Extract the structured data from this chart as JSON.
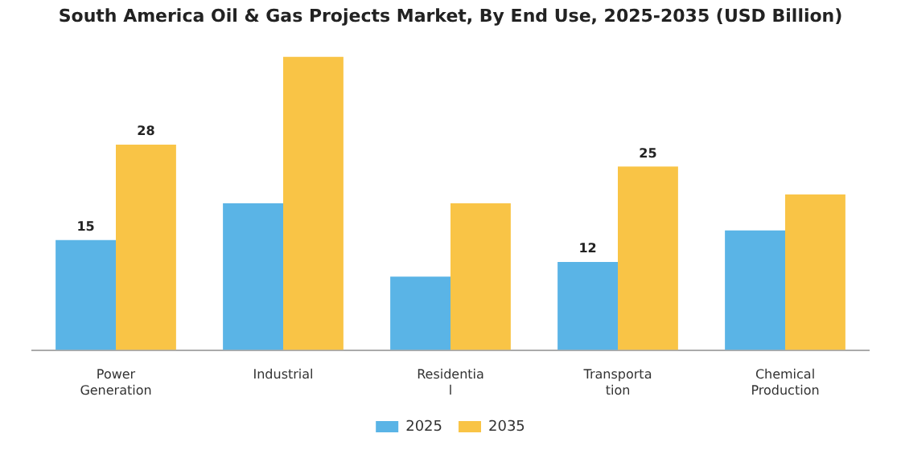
{
  "chart_data": {
    "type": "bar",
    "title": "South America Oil & Gas Projects Market, By End Use, 2025-2035 (USD Billion)",
    "categories": [
      "Power\nGeneration",
      "Industrial",
      "Residentia\nl",
      "Transporta\ntion",
      "Chemical\nProduction"
    ],
    "series": [
      {
        "name": "2025",
        "color": "#5ab4e6",
        "values": [
          15,
          20,
          10,
          12,
          16.3
        ],
        "value_labels": [
          "15",
          null,
          null,
          "12",
          null
        ]
      },
      {
        "name": "2035",
        "color": "#f9c446",
        "values": [
          28,
          40,
          20,
          25,
          21.2
        ],
        "value_labels": [
          "28",
          null,
          null,
          "25",
          null
        ]
      }
    ],
    "legend": "bottom",
    "grid": false
  }
}
